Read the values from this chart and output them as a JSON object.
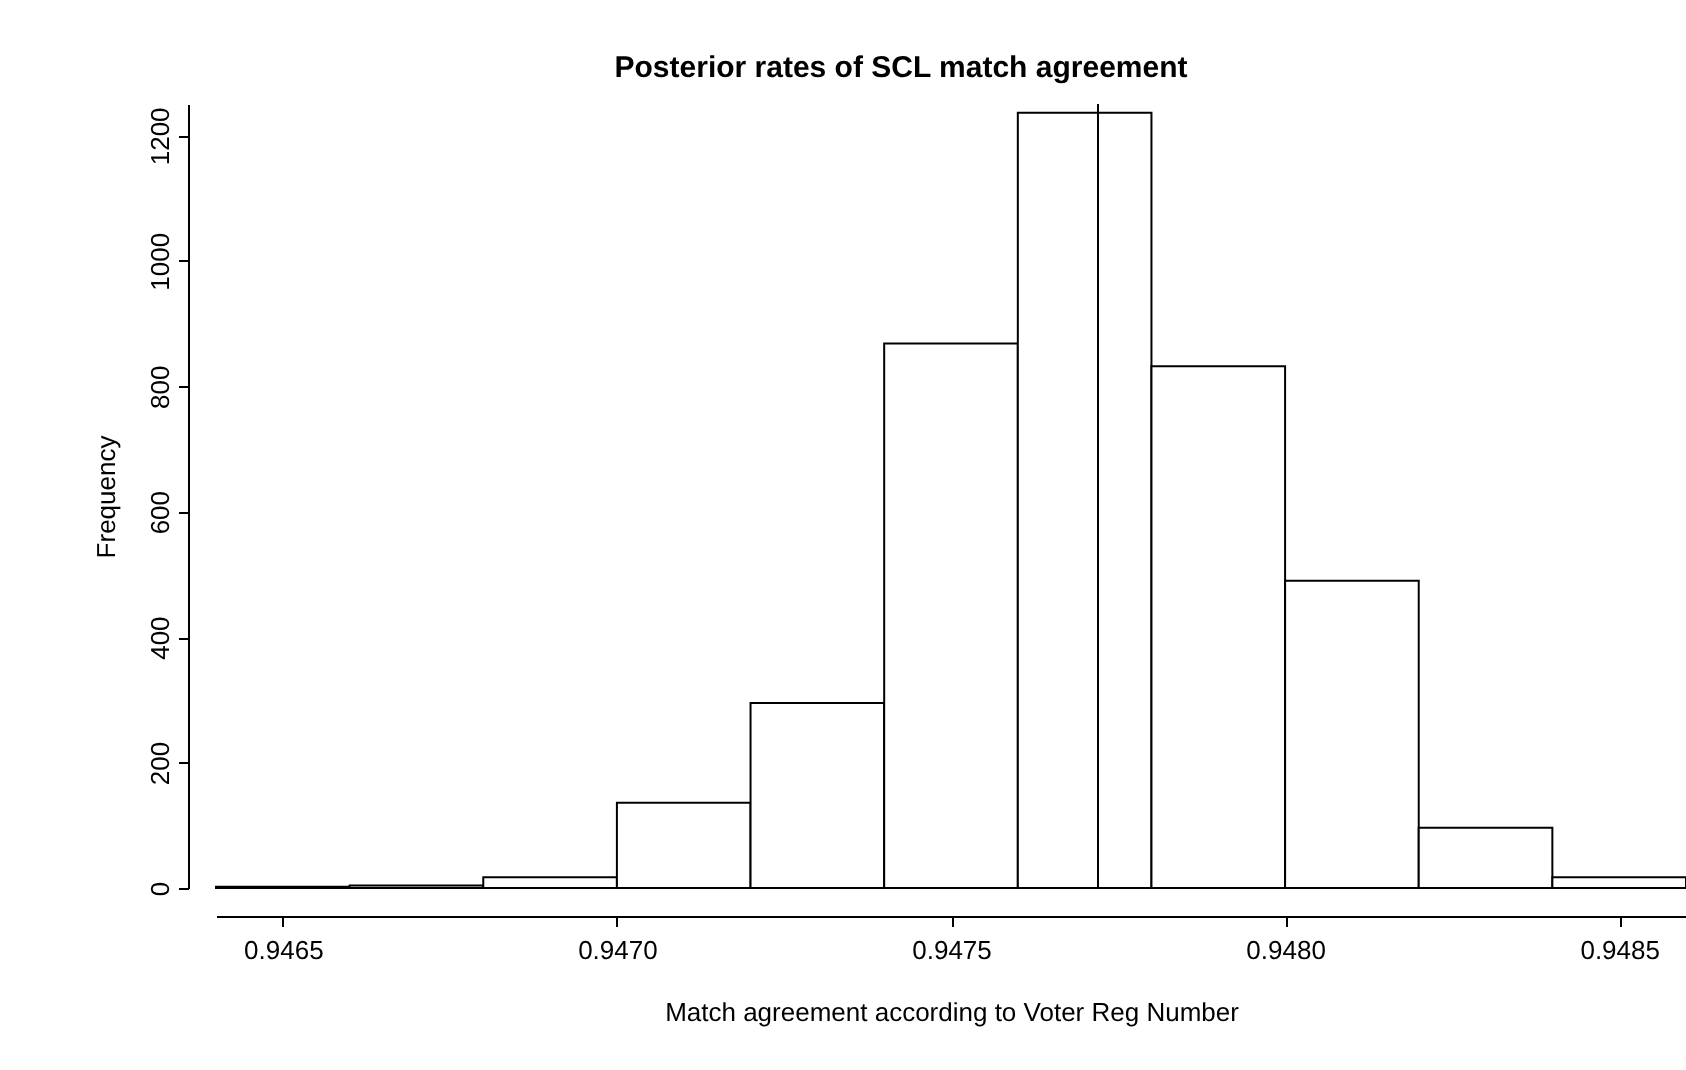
{
  "chart_data": {
    "type": "histogram",
    "title": "Posterior rates of SCL match agreement",
    "xlabel": "Match agreement according to Voter Reg Number",
    "ylabel": "Frequency",
    "bins": [
      0.9464,
      0.9466,
      0.9468,
      0.947,
      0.9472,
      0.9474,
      0.9476,
      0.9478,
      0.948,
      0.9482,
      0.9484,
      0.9486
    ],
    "values": [
      2,
      4,
      17,
      136,
      295,
      868,
      1236,
      832,
      490,
      96,
      17
    ],
    "color": "#ffffff",
    "xlim": [
      0.9464,
      0.9486
    ],
    "xticks": [
      0.9465,
      {
        "value": 0.947,
        "label": "0.9470"
      },
      0.9475,
      {
        "value": 0.948,
        "label": "0.9480"
      },
      0.9485
    ],
    "ylim": [
      0,
      1250
    ],
    "yticks": [
      0,
      200,
      400,
      600,
      800,
      1000,
      1200
    ],
    "ref_lines": [
      {
        "axis": "x",
        "value": 0.94772
      }
    ],
    "grid": false
  }
}
